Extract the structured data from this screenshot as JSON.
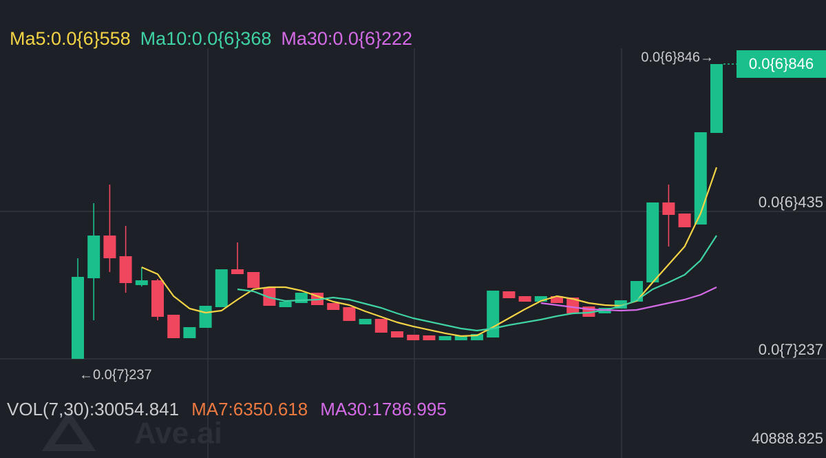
{
  "chart_data": {
    "type": "candlestick",
    "open": [
      2.37e-08,
      2.486e-07,
      3.677e-07,
      3.1e-07,
      2.294e-07,
      2.428e-07,
      1.468e-07,
      8.14e-08,
      1.103e-07,
      1.679e-07,
      2.735e-07,
      2.659e-07,
      2.217e-07,
      1.679e-07,
      1.794e-07,
      2.082e-07,
      1.794e-07,
      1.679e-07,
      1.199e-07,
      1.352e-07,
      1.006e-07,
      9.1e-08,
      8.91e-08,
      7.56e-08,
      7.56e-08,
      7.56e-08,
      8.33e-08,
      2.121e-07,
      1.986e-07,
      1.833e-07,
      1.986e-07,
      1.948e-07,
      1.698e-07,
      1.506e-07,
      1.64e-07,
      1.833e-07,
      2.37e-07,
      4.599e-07,
      4.291e-07,
      3.984e-07,
      6.539e-07
    ],
    "high": [
      3.043e-07,
      4.58e-07,
      5.098e-07,
      3.946e-07,
      2.793e-07,
      2.466e-07,
      1.468e-07,
      1.122e-07,
      1.717e-07,
      2.735e-07,
      3.485e-07,
      2.659e-07,
      2.217e-07,
      1.833e-07,
      2.082e-07,
      2.082e-07,
      1.794e-07,
      1.679e-07,
      1.352e-07,
      1.352e-07,
      1.006e-07,
      9.1e-08,
      8.91e-08,
      8.72e-08,
      8.91e-08,
      9.3e-08,
      2.14e-07,
      2.121e-07,
      1.986e-07,
      1.986e-07,
      1.986e-07,
      1.948e-07,
      1.698e-07,
      1.66e-07,
      1.871e-07,
      2.409e-07,
      4.599e-07,
      5.098e-07,
      4.291e-07,
      6.558e-07,
      8.46e-07
    ],
    "low": [
      2.37e-08,
      1.314e-07,
      2.659e-07,
      2.082e-07,
      2.255e-07,
      1.314e-07,
      8.14e-08,
      8.14e-08,
      1.103e-07,
      1.679e-07,
      2.601e-07,
      2.217e-07,
      1.717e-07,
      1.679e-07,
      1.794e-07,
      1.737e-07,
      1.602e-07,
      1.295e-07,
      1.199e-07,
      9.68e-08,
      8.33e-08,
      7.56e-08,
      7.56e-08,
      7.56e-08,
      7.56e-08,
      7.56e-08,
      8.33e-08,
      1.929e-07,
      1.833e-07,
      1.833e-07,
      1.794e-07,
      1.506e-07,
      1.41e-07,
      1.506e-07,
      1.64e-07,
      1.833e-07,
      2.37e-07,
      3.37e-07,
      3.907e-07,
      3.984e-07,
      6.539e-07
    ],
    "close": [
      2.524e-07,
      3.677e-07,
      3.043e-07,
      2.351e-07,
      2.428e-07,
      1.41e-07,
      8.14e-08,
      1.122e-07,
      1.717e-07,
      2.735e-07,
      2.601e-07,
      2.217e-07,
      1.717e-07,
      1.833e-07,
      2.082e-07,
      1.737e-07,
      1.602e-07,
      1.295e-07,
      1.352e-07,
      9.68e-08,
      8.33e-08,
      7.56e-08,
      7.56e-08,
      8.72e-08,
      8.91e-08,
      9.3e-08,
      2.14e-07,
      1.929e-07,
      1.833e-07,
      1.986e-07,
      1.794e-07,
      1.506e-07,
      1.41e-07,
      1.66e-07,
      1.871e-07,
      2.409e-07,
      4.599e-07,
      4.253e-07,
      3.907e-07,
      6.558e-07,
      8.46e-07
    ],
    "up_color": "#1bbf8c",
    "down_color": "#f0475f",
    "series": [
      {
        "name": "Ma5:0.0{6}558",
        "color": "#f3d346",
        "values": [
          null,
          null,
          null,
          null,
          2.793e-07,
          2.601e-07,
          1.986e-07,
          1.64e-07,
          1.525e-07,
          1.583e-07,
          1.89e-07,
          2.178e-07,
          2.236e-07,
          2.236e-07,
          2.14e-07,
          1.986e-07,
          1.833e-07,
          1.737e-07,
          1.564e-07,
          1.41e-07,
          1.257e-07,
          1.142e-07,
          1.046e-07,
          9.5e-08,
          8.72e-08,
          8.91e-08,
          1.122e-07,
          1.371e-07,
          1.621e-07,
          1.852e-07,
          1.986e-07,
          1.91e-07,
          1.794e-07,
          1.737e-07,
          1.717e-07,
          1.852e-07,
          2.37e-07,
          2.87e-07,
          3.37e-07,
          4.291e-07,
          5.579e-07
        ]
      },
      {
        "name": "Ma10:0.0{6}368",
        "color": "#3fd3a3",
        "values": [
          null,
          null,
          null,
          null,
          null,
          null,
          null,
          null,
          null,
          null,
          2.178e-07,
          2.121e-07,
          1.948e-07,
          1.852e-07,
          1.871e-07,
          1.89e-07,
          1.948e-07,
          1.89e-07,
          1.775e-07,
          1.66e-07,
          1.506e-07,
          1.371e-07,
          1.276e-07,
          1.18e-07,
          1.083e-07,
          1.026e-07,
          1.083e-07,
          1.18e-07,
          1.257e-07,
          1.333e-07,
          1.429e-07,
          1.506e-07,
          1.525e-07,
          1.602e-07,
          1.698e-07,
          1.871e-07,
          2.178e-07,
          2.37e-07,
          2.582e-07,
          2.985e-07,
          3.677e-07
        ]
      },
      {
        "name": "Ma30:0.0{6}222",
        "color": "#d46be6",
        "values": [
          null,
          null,
          null,
          null,
          null,
          null,
          null,
          null,
          null,
          null,
          null,
          null,
          null,
          null,
          null,
          null,
          null,
          null,
          null,
          null,
          null,
          null,
          null,
          null,
          null,
          null,
          null,
          null,
          null,
          1.794e-07,
          1.737e-07,
          1.679e-07,
          1.621e-07,
          1.602e-07,
          1.583e-07,
          1.602e-07,
          1.698e-07,
          1.794e-07,
          1.89e-07,
          2.025e-07,
          2.236e-07
        ]
      }
    ],
    "ylim": [
      -5.11e-08,
      9.478e-07
    ],
    "yticks": [
      {
        "value": 4.35e-07,
        "label": "0.0{6}435"
      },
      {
        "value": 2.37e-08,
        "label": "0.0{7}237"
      }
    ],
    "grid": true,
    "max_label": "0.0{6}846→",
    "min_label": "←0.0{7}237",
    "price_tag": {
      "value": 8.46e-07,
      "label": "0.0{6}846"
    },
    "volume": {
      "legend": [
        {
          "text": "VOL(7,30):30054.841",
          "color": "#c9cbd1"
        },
        {
          "text": "MA7:6350.618",
          "color": "#ec7a40"
        },
        {
          "text": "MA30:1786.995",
          "color": "#d46be6"
        }
      ],
      "max_label": "40888.825"
    }
  },
  "watermark": "Ave.ai"
}
